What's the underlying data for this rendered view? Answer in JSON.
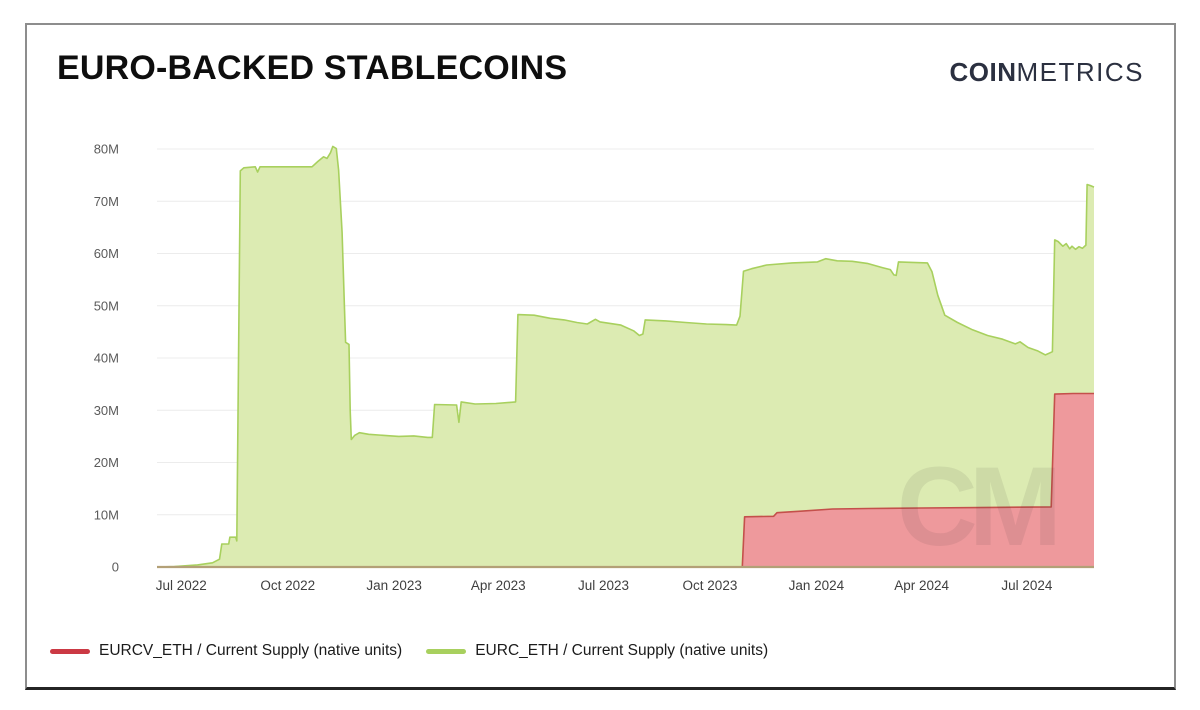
{
  "header": {
    "title": "EURO-BACKED STABLECOINS",
    "logo_bold": "COIN",
    "logo_light": "METRICS"
  },
  "watermark": "CM",
  "legend": [
    {
      "label": "EURCV_ETH / Current Supply (native units)",
      "color": "#cb3944"
    },
    {
      "label": "EURC_ETH / Current Supply (native units)",
      "color": "#a8d05e"
    }
  ],
  "chart_data": {
    "type": "area",
    "title": "EURO-BACKED STABLECOINS",
    "xlabel": "",
    "ylabel": "Current Supply (native units)",
    "value_unit": "millions of native units",
    "ylim": [
      0,
      80
    ],
    "grid": "horizontal",
    "legend_position": "bottom-left",
    "axis_line_color": "#b3a077",
    "grid_color": "#ececec",
    "x_range": [
      "2022-06-10",
      "2024-08-28"
    ],
    "yticks": [
      {
        "v": 0,
        "label": "0"
      },
      {
        "v": 10,
        "label": "10M"
      },
      {
        "v": 20,
        "label": "20M"
      },
      {
        "v": 30,
        "label": "30M"
      },
      {
        "v": 40,
        "label": "40M"
      },
      {
        "v": 50,
        "label": "50M"
      },
      {
        "v": 60,
        "label": "60M"
      },
      {
        "v": 70,
        "label": "70M"
      },
      {
        "v": 80,
        "label": "80M"
      }
    ],
    "xticks": [
      {
        "date": "2022-07-01",
        "label": "Jul 2022"
      },
      {
        "date": "2022-10-01",
        "label": "Oct 2022"
      },
      {
        "date": "2023-01-01",
        "label": "Jan 2023"
      },
      {
        "date": "2023-04-01",
        "label": "Apr 2023"
      },
      {
        "date": "2023-07-01",
        "label": "Jul 2023"
      },
      {
        "date": "2023-10-01",
        "label": "Oct 2023"
      },
      {
        "date": "2024-01-01",
        "label": "Jan 2024"
      },
      {
        "date": "2024-04-01",
        "label": "Apr 2024"
      },
      {
        "date": "2024-07-01",
        "label": "Jul 2024"
      }
    ],
    "series": [
      {
        "id": "eurc-eth",
        "name": "EURC_ETH / Current Supply (native units)",
        "line_color": "#a8d05e",
        "fill_color": "#dcebb2",
        "points": [
          [
            "2022-06-10",
            0
          ],
          [
            "2022-06-25",
            0.1
          ],
          [
            "2022-07-15",
            0.4
          ],
          [
            "2022-07-28",
            0.8
          ],
          [
            "2022-08-03",
            1.5
          ],
          [
            "2022-08-05",
            4.4
          ],
          [
            "2022-08-11",
            4.4
          ],
          [
            "2022-08-12",
            5.7
          ],
          [
            "2022-08-17",
            5.7
          ],
          [
            "2022-08-18",
            5.0
          ],
          [
            "2022-08-21",
            75.8
          ],
          [
            "2022-08-24",
            76.4
          ],
          [
            "2022-09-03",
            76.6
          ],
          [
            "2022-09-05",
            75.6
          ],
          [
            "2022-09-07",
            76.6
          ],
          [
            "2022-10-22",
            76.6
          ],
          [
            "2022-10-27",
            77.6
          ],
          [
            "2022-11-01",
            78.5
          ],
          [
            "2022-11-04",
            78.2
          ],
          [
            "2022-11-07",
            79.3
          ],
          [
            "2022-11-09",
            80.5
          ],
          [
            "2022-11-12",
            80.1
          ],
          [
            "2022-11-14",
            76.0
          ],
          [
            "2022-11-17",
            64.0
          ],
          [
            "2022-11-19",
            50.0
          ],
          [
            "2022-11-20",
            43.0
          ],
          [
            "2022-11-23",
            42.6
          ],
          [
            "2022-11-24",
            30.0
          ],
          [
            "2022-11-25",
            24.4
          ],
          [
            "2022-11-28",
            25.2
          ],
          [
            "2022-12-02",
            25.7
          ],
          [
            "2022-12-10",
            25.4
          ],
          [
            "2022-12-22",
            25.2
          ],
          [
            "2023-01-05",
            25.0
          ],
          [
            "2023-01-18",
            25.1
          ],
          [
            "2023-01-30",
            24.8
          ],
          [
            "2023-02-03",
            24.8
          ],
          [
            "2023-02-05",
            31.1
          ],
          [
            "2023-02-24",
            31.0
          ],
          [
            "2023-02-26",
            27.7
          ],
          [
            "2023-02-28",
            31.6
          ],
          [
            "2023-03-12",
            31.2
          ],
          [
            "2023-03-30",
            31.3
          ],
          [
            "2023-04-16",
            31.6
          ],
          [
            "2023-04-18",
            48.3
          ],
          [
            "2023-05-02",
            48.2
          ],
          [
            "2023-05-16",
            47.6
          ],
          [
            "2023-05-28",
            47.3
          ],
          [
            "2023-06-08",
            46.8
          ],
          [
            "2023-06-17",
            46.5
          ],
          [
            "2023-06-24",
            47.4
          ],
          [
            "2023-06-28",
            46.9
          ],
          [
            "2023-07-16",
            46.3
          ],
          [
            "2023-07-27",
            45.2
          ],
          [
            "2023-08-01",
            44.3
          ],
          [
            "2023-08-04",
            44.6
          ],
          [
            "2023-08-06",
            47.3
          ],
          [
            "2023-08-24",
            47.1
          ],
          [
            "2023-09-10",
            46.8
          ],
          [
            "2023-09-28",
            46.5
          ],
          [
            "2023-10-15",
            46.4
          ],
          [
            "2023-10-24",
            46.3
          ],
          [
            "2023-10-27",
            48.0
          ],
          [
            "2023-10-30",
            56.6
          ],
          [
            "2023-11-06",
            57.1
          ],
          [
            "2023-11-19",
            57.8
          ],
          [
            "2023-12-11",
            58.2
          ],
          [
            "2024-01-02",
            58.4
          ],
          [
            "2024-01-09",
            59.0
          ],
          [
            "2024-01-19",
            58.6
          ],
          [
            "2024-02-01",
            58.5
          ],
          [
            "2024-02-14",
            58.1
          ],
          [
            "2024-02-27",
            57.3
          ],
          [
            "2024-03-05",
            56.9
          ],
          [
            "2024-03-08",
            55.9
          ],
          [
            "2024-03-10",
            55.8
          ],
          [
            "2024-03-12",
            58.4
          ],
          [
            "2024-03-24",
            58.3
          ],
          [
            "2024-04-06",
            58.2
          ],
          [
            "2024-04-10",
            56.5
          ],
          [
            "2024-04-15",
            52.0
          ],
          [
            "2024-04-21",
            48.2
          ],
          [
            "2024-05-02",
            46.8
          ],
          [
            "2024-05-15",
            45.4
          ],
          [
            "2024-05-28",
            44.3
          ],
          [
            "2024-06-10",
            43.6
          ],
          [
            "2024-06-21",
            42.7
          ],
          [
            "2024-06-25",
            43.1
          ],
          [
            "2024-07-02",
            42.0
          ],
          [
            "2024-07-10",
            41.4
          ],
          [
            "2024-07-17",
            40.6
          ],
          [
            "2024-07-21",
            41.0
          ],
          [
            "2024-07-23",
            41.2
          ],
          [
            "2024-07-25",
            62.6
          ],
          [
            "2024-07-28",
            62.3
          ],
          [
            "2024-08-01",
            61.4
          ],
          [
            "2024-08-04",
            61.9
          ],
          [
            "2024-08-07",
            60.9
          ],
          [
            "2024-08-09",
            61.4
          ],
          [
            "2024-08-12",
            60.8
          ],
          [
            "2024-08-15",
            61.3
          ],
          [
            "2024-08-18",
            61.0
          ],
          [
            "2024-08-21",
            61.6
          ],
          [
            "2024-08-22",
            73.2
          ],
          [
            "2024-08-25",
            73.0
          ],
          [
            "2024-08-28",
            72.7
          ]
        ]
      },
      {
        "id": "eurcv-eth",
        "name": "EURCV_ETH / Current Supply (native units)",
        "line_color": "#c4504b",
        "fill_color": "#ee999c",
        "points": [
          [
            "2022-06-10",
            0
          ],
          [
            "2023-10-29",
            0
          ],
          [
            "2023-10-31",
            9.6
          ],
          [
            "2023-11-25",
            9.7
          ],
          [
            "2023-11-28",
            10.4
          ],
          [
            "2023-12-20",
            10.7
          ],
          [
            "2024-01-15",
            11.1
          ],
          [
            "2024-02-15",
            11.2
          ],
          [
            "2024-04-01",
            11.3
          ],
          [
            "2024-06-01",
            11.4
          ],
          [
            "2024-07-22",
            11.5
          ],
          [
            "2024-07-25",
            33.1
          ],
          [
            "2024-08-10",
            33.2
          ],
          [
            "2024-08-28",
            33.2
          ]
        ]
      }
    ]
  }
}
